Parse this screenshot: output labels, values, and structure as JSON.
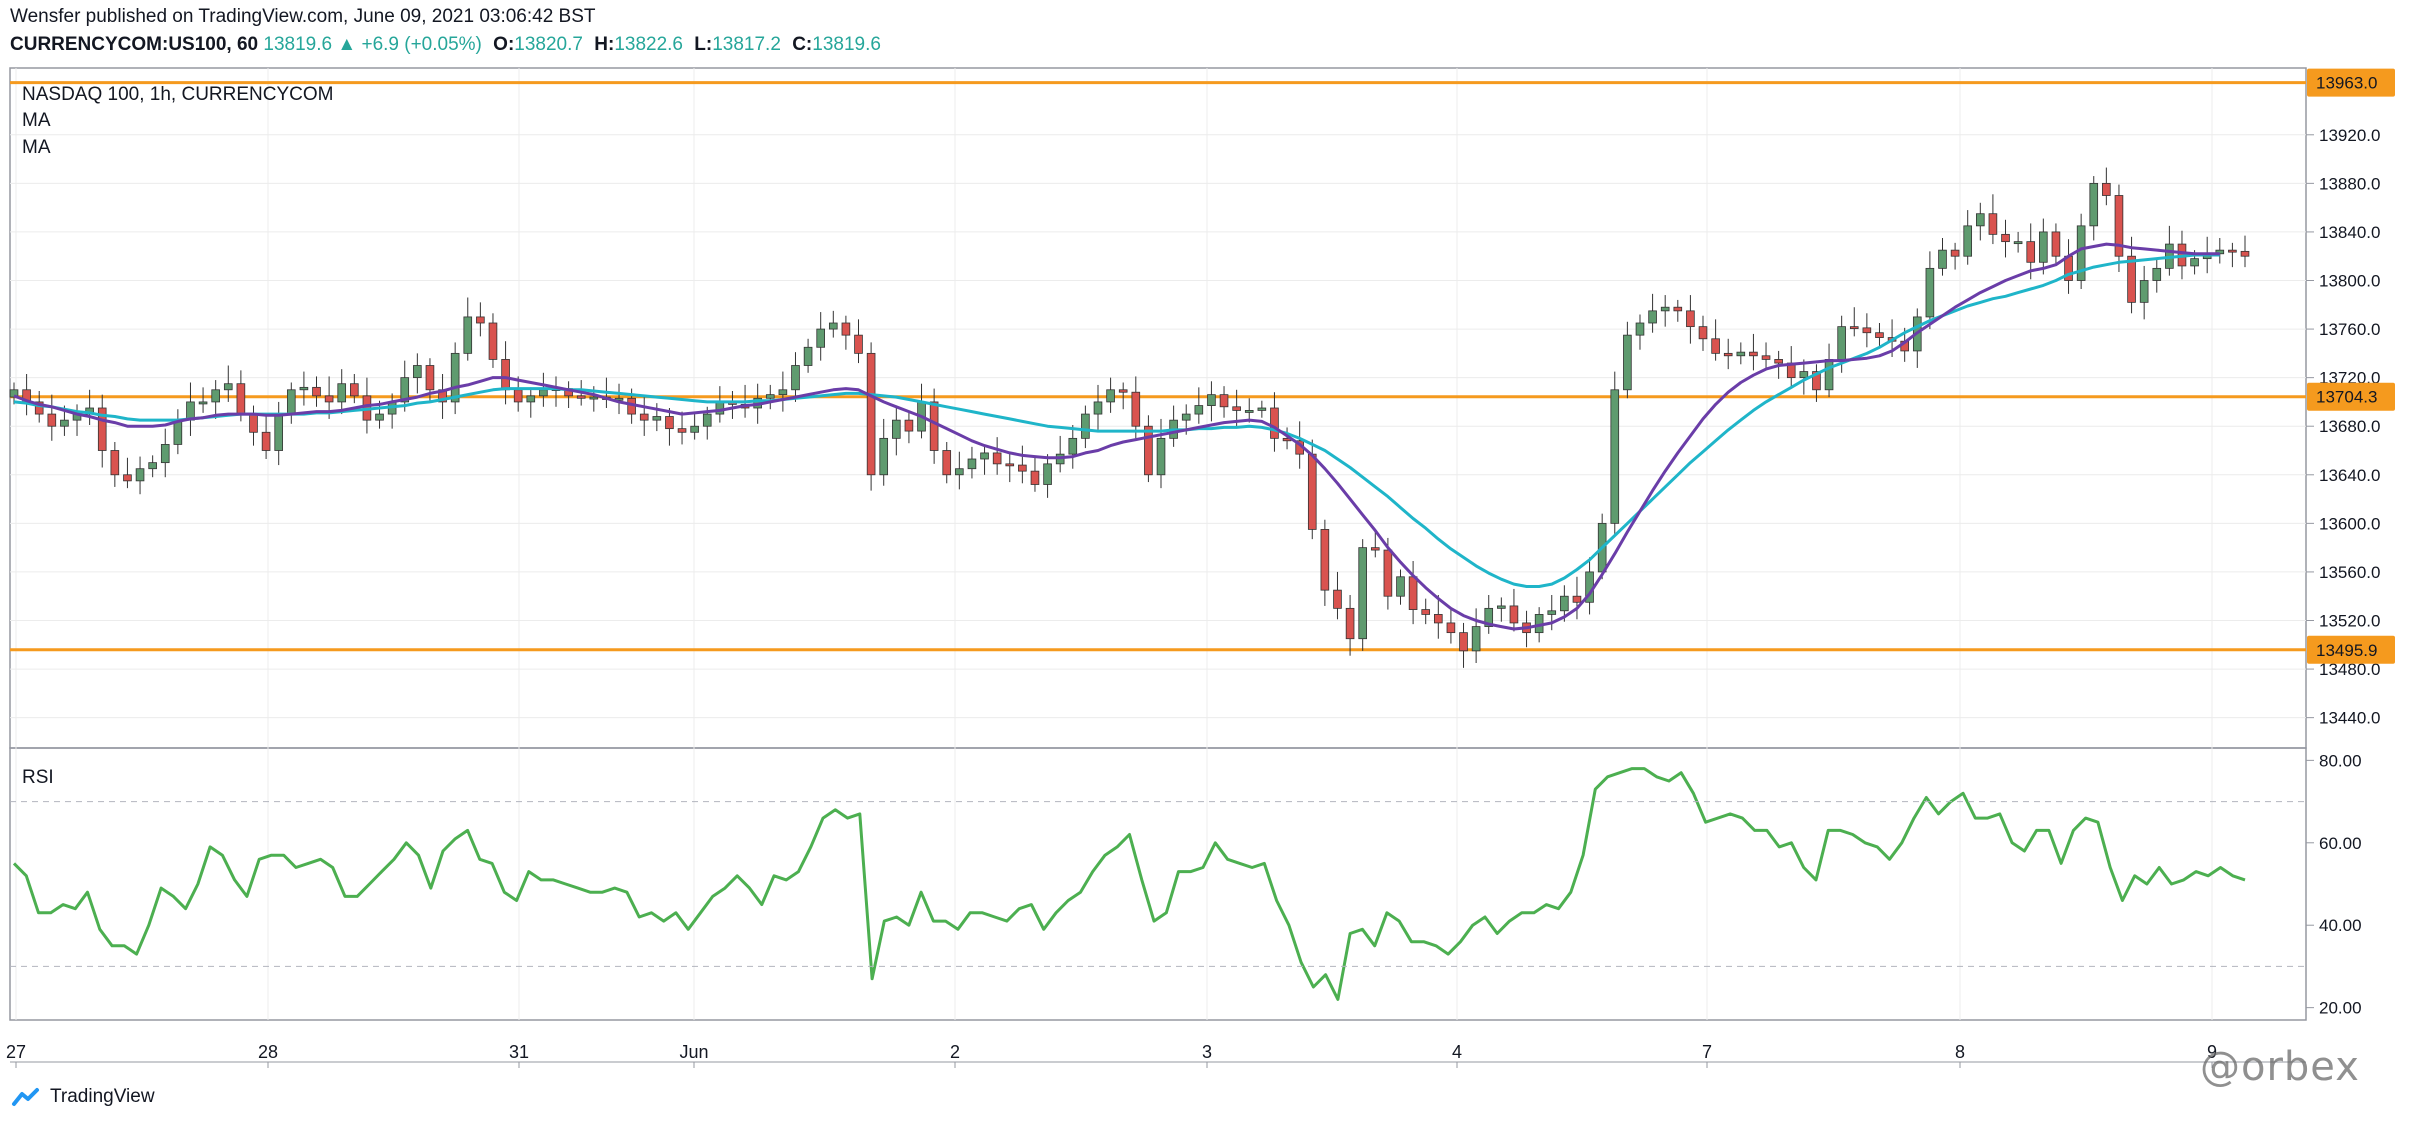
{
  "header": {
    "publisher_line": "Wensfer published on TradingView.com, June 09, 2021 03:06:42 BST",
    "author": "Wensfer",
    "symbol": "CURRENCYCOM:US100, 60",
    "last": "13819.6",
    "change": "+6.9 (+0.05%)",
    "open_label": "O:",
    "open": "13820.7",
    "high_label": "H:",
    "high": "13822.6",
    "low_label": "L:",
    "low": "13817.2",
    "close_label": "C:",
    "close": "13819.6"
  },
  "legend": {
    "title": "NASDAQ 100, 1h, CURRENCYCOM",
    "ma1": "MA",
    "ma2": "MA",
    "rsi": "RSI"
  },
  "colors": {
    "up": "#5f9b6f",
    "down": "#d9534f",
    "ma_fast": "#6a3da8",
    "ma_slow": "#1fb5c9",
    "level": "#f59a1e",
    "rsi": "#4caf50",
    "grid": "#ececec",
    "axis": "#787b86"
  },
  "footer": {
    "brand": "TradingView",
    "watermark": "@orbex"
  },
  "chart_data": [
    {
      "type": "candlestick",
      "title": "NASDAQ 100, 1h, CURRENCYCOM",
      "x_tick_labels": [
        "27",
        "28",
        "31",
        "Jun",
        "2",
        "3",
        "4",
        "7",
        "8",
        "9"
      ],
      "y_tick_labels": [
        "13920.0",
        "13880.0",
        "13840.0",
        "13800.0",
        "13760.0",
        "13720.0",
        "13680.0",
        "13640.0",
        "13600.0",
        "13560.0",
        "13520.0",
        "13480.0",
        "13440.0"
      ],
      "ylim": [
        13415,
        13975
      ],
      "horizontal_levels": [
        {
          "value": 13963.0,
          "label": "13963.0"
        },
        {
          "value": 13704.3,
          "label": "13704.3"
        },
        {
          "value": 13495.9,
          "label": "13495.9"
        }
      ],
      "closes": [
        13710,
        13700,
        13690,
        13680,
        13685,
        13690,
        13695,
        13660,
        13640,
        13635,
        13645,
        13650,
        13665,
        13685,
        13700,
        13700,
        13710,
        13715,
        13690,
        13675,
        13660,
        13690,
        13710,
        13712,
        13705,
        13700,
        13715,
        13705,
        13685,
        13690,
        13700,
        13720,
        13730,
        13710,
        13700,
        13740,
        13770,
        13765,
        13735,
        13710,
        13700,
        13705,
        13710,
        13711,
        13705,
        13703,
        13704,
        13702,
        13703,
        13690,
        13685,
        13688,
        13678,
        13675,
        13680,
        13690,
        13700,
        13698,
        13695,
        13703,
        13706,
        13710,
        13730,
        13745,
        13760,
        13765,
        13755,
        13740,
        13640,
        13670,
        13685,
        13676,
        13700,
        13660,
        13640,
        13645,
        13653,
        13658,
        13649,
        13648,
        13643,
        13632,
        13649,
        13657,
        13670,
        13690,
        13700,
        13710,
        13708,
        13680,
        13640,
        13670,
        13685,
        13690,
        13697,
        13706,
        13696,
        13693,
        13693,
        13695,
        13670,
        13668,
        13657,
        13595,
        13545,
        13530,
        13505,
        13580,
        13578,
        13540,
        13556,
        13529,
        13525,
        13518,
        13510,
        13495,
        13515,
        13530,
        13532,
        13518,
        13510,
        13525,
        13528,
        13540,
        13535,
        13560,
        13600,
        13710,
        13755,
        13765,
        13775,
        13778,
        13775,
        13762,
        13752,
        13740,
        13738,
        13741,
        13738,
        13735,
        13732,
        13720,
        13725,
        13710,
        13735,
        13762,
        13761,
        13757,
        13753,
        13750,
        13742,
        13770,
        13810,
        13825,
        13820,
        13845,
        13855,
        13838,
        13832,
        13832,
        13815,
        13840,
        13820,
        13800,
        13845,
        13880,
        13870,
        13820,
        13782,
        13800,
        13810,
        13830,
        13812,
        13818,
        13822,
        13825,
        13824,
        13820
      ],
      "ma_fast": [
        13705,
        13701,
        13698,
        13696,
        13693,
        13690,
        13688,
        13685,
        13683,
        13680,
        13680,
        13680,
        13681,
        13684,
        13686,
        13687,
        13689,
        13690,
        13690,
        13690,
        13689,
        13689,
        13690,
        13691,
        13692,
        13692,
        13693,
        13695,
        13697,
        13698,
        13700,
        13702,
        13704,
        13707,
        13709,
        13712,
        13714,
        13717,
        13720,
        13720,
        13718,
        13716,
        13714,
        13712,
        13710,
        13708,
        13706,
        13703,
        13700,
        13698,
        13696,
        13694,
        13692,
        13690,
        13691,
        13692,
        13693,
        13695,
        13697,
        13698,
        13700,
        13702,
        13704,
        13706,
        13708,
        13710,
        13711,
        13710,
        13705,
        13700,
        13696,
        13692,
        13688,
        13683,
        13678,
        13673,
        13668,
        13664,
        13661,
        13658,
        13656,
        13655,
        13654,
        13654,
        13655,
        13658,
        13660,
        13664,
        13667,
        13669,
        13671,
        13673,
        13675,
        13677,
        13679,
        13681,
        13683,
        13684,
        13685,
        13684,
        13679,
        13672,
        13665,
        13656,
        13645,
        13633,
        13620,
        13607,
        13594,
        13580,
        13568,
        13557,
        13547,
        13538,
        13530,
        13524,
        13520,
        13517,
        13515,
        13513,
        13514,
        13516,
        13518,
        13523,
        13530,
        13542,
        13558,
        13575,
        13593,
        13610,
        13627,
        13643,
        13658,
        13672,
        13686,
        13698,
        13708,
        13716,
        13722,
        13727,
        13730,
        13731,
        13732,
        13733,
        13734,
        13734,
        13735,
        13736,
        13738,
        13742,
        13749,
        13757,
        13764,
        13771,
        13778,
        13784,
        13790,
        13795,
        13800,
        13804,
        13808,
        13810,
        13813,
        13820,
        13826,
        13828,
        13830,
        13829,
        13827,
        13826,
        13825,
        13824,
        13823,
        13822,
        13822,
        13822
      ],
      "ma_slow": [
        13700,
        13699,
        13697,
        13696,
        13694,
        13692,
        13691,
        13689,
        13688,
        13686,
        13685,
        13685,
        13685,
        13685,
        13686,
        13687,
        13688,
        13689,
        13690,
        13690,
        13690,
        13690,
        13690,
        13690,
        13691,
        13691,
        13692,
        13693,
        13694,
        13695,
        13696,
        13697,
        13699,
        13700,
        13702,
        13704,
        13706,
        13708,
        13710,
        13711,
        13711,
        13711,
        13711,
        13711,
        13710,
        13710,
        13709,
        13708,
        13707,
        13706,
        13705,
        13704,
        13703,
        13702,
        13701,
        13700,
        13700,
        13700,
        13700,
        13701,
        13701,
        13702,
        13703,
        13704,
        13705,
        13706,
        13707,
        13707,
        13706,
        13705,
        13704,
        13702,
        13700,
        13698,
        13696,
        13694,
        13692,
        13690,
        13688,
        13686,
        13684,
        13682,
        13680,
        13679,
        13678,
        13677,
        13676,
        13676,
        13676,
        13676,
        13676,
        13676,
        13677,
        13677,
        13678,
        13678,
        13679,
        13679,
        13680,
        13679,
        13677,
        13674,
        13670,
        13665,
        13660,
        13653,
        13646,
        13638,
        13630,
        13622,
        13613,
        13604,
        13596,
        13587,
        13579,
        13572,
        13565,
        13559,
        13554,
        13550,
        13548,
        13548,
        13550,
        13555,
        13562,
        13570,
        13580,
        13590,
        13600,
        13610,
        13620,
        13630,
        13640,
        13650,
        13659,
        13668,
        13677,
        13685,
        13693,
        13700,
        13706,
        13712,
        13718,
        13723,
        13728,
        13732,
        13736,
        13740,
        13745,
        13751,
        13757,
        13762,
        13767,
        13771,
        13775,
        13779,
        13782,
        13785,
        13787,
        13790,
        13793,
        13796,
        13800,
        13805,
        13808,
        13811,
        13813,
        13815,
        13816,
        13817,
        13818,
        13819,
        13820,
        13821,
        13821,
        13821
      ]
    },
    {
      "type": "line",
      "title": "RSI",
      "y_tick_labels": [
        "80.00",
        "60.00",
        "40.00",
        "20.00"
      ],
      "ylim": [
        17,
        83
      ],
      "reference_levels": [
        70,
        30
      ],
      "values": [
        55,
        52,
        43,
        43,
        45,
        44,
        48,
        39,
        35,
        35,
        33,
        40,
        49,
        47,
        44,
        50,
        59,
        57,
        51,
        47,
        56,
        57,
        57,
        54,
        55,
        56,
        54,
        47,
        47,
        50,
        53,
        56,
        60,
        57,
        49,
        58,
        61,
        63,
        56,
        55,
        48,
        46,
        53,
        51,
        51,
        50,
        49,
        48,
        48,
        49,
        48,
        42,
        43,
        41,
        43,
        39,
        43,
        47,
        49,
        52,
        49,
        45,
        52,
        51,
        53,
        59,
        66,
        68,
        66,
        67,
        27,
        41,
        42,
        40,
        48,
        41,
        41,
        39,
        43,
        43,
        42,
        41,
        44,
        45,
        39,
        43,
        46,
        48,
        53,
        57,
        59,
        62,
        51,
        41,
        43,
        53,
        53,
        54,
        60,
        56,
        55,
        54,
        55,
        46,
        40,
        31,
        25,
        28,
        22,
        38,
        39,
        35,
        43,
        41,
        36,
        36,
        35,
        33,
        36,
        40,
        42,
        38,
        41,
        43,
        43,
        45,
        44,
        48,
        57,
        73,
        76,
        77,
        78,
        78,
        76,
        75,
        77,
        72,
        65,
        66,
        67,
        66,
        63,
        63,
        59,
        60,
        54,
        51,
        63,
        63,
        62,
        60,
        59,
        56,
        60,
        66,
        71,
        67,
        70,
        72,
        66,
        66,
        67,
        60,
        58,
        63,
        63,
        55,
        63,
        66,
        65,
        54,
        46,
        52,
        50,
        54,
        50,
        51,
        53,
        52,
        54,
        52,
        51
      ]
    }
  ]
}
